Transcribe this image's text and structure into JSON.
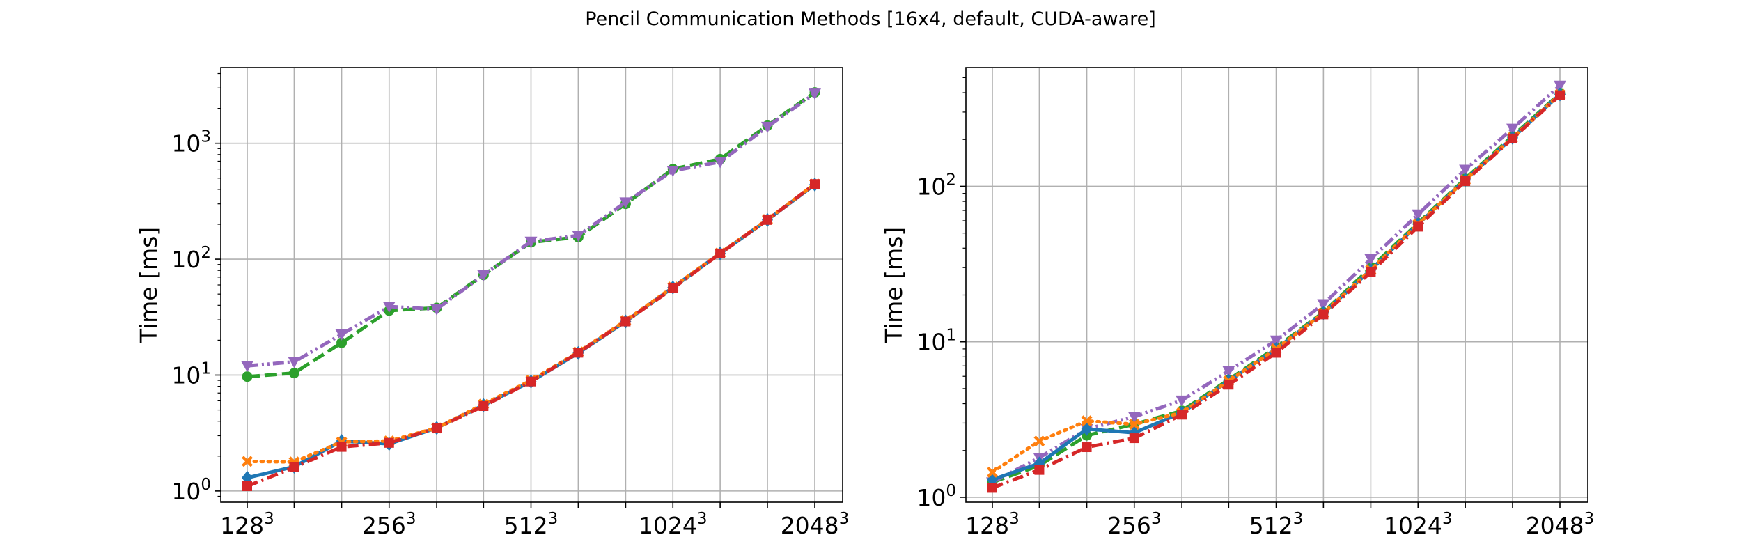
{
  "figure": {
    "title": "Pencil Communication Methods [16x4, default, CUDA-aware]"
  },
  "chart_data": [
    {
      "type": "line",
      "title": "",
      "xlabel": "",
      "ylabel": "Time [ms]",
      "yscale": "log",
      "xscale": "log2",
      "grid": true,
      "x": [
        128,
        161,
        203,
        256,
        323,
        406,
        512,
        645,
        813,
        1024,
        1290,
        1625,
        2048
      ],
      "xticks": [
        {
          "value": 128,
          "base": "128",
          "exp": "3"
        },
        {
          "value": 256,
          "base": "256",
          "exp": "3"
        },
        {
          "value": 512,
          "base": "512",
          "exp": "3"
        },
        {
          "value": 1024,
          "base": "1024",
          "exp": "3"
        },
        {
          "value": 2048,
          "base": "2048",
          "exp": "3"
        }
      ],
      "yticks": [
        {
          "value": 1,
          "base": "10",
          "exp": "0"
        },
        {
          "value": 10,
          "base": "10",
          "exp": "1"
        },
        {
          "value": 100,
          "base": "10",
          "exp": "2"
        },
        {
          "value": 1000,
          "base": "10",
          "exp": "3"
        }
      ],
      "ylim": [
        0.8,
        4500
      ],
      "series": [
        {
          "color": "#2ca02c",
          "dash": "dashed",
          "marker": "circle",
          "values": [
            9.7,
            10.4,
            19,
            36,
            38,
            73,
            140,
            155,
            300,
            600,
            730,
            1420,
            2750
          ]
        },
        {
          "color": "#9467bd",
          "dash": "dashdotdot",
          "marker": "triangle-down",
          "values": [
            12,
            13,
            22.5,
            39,
            37,
            73,
            142,
            160,
            310,
            580,
            690,
            1390,
            2690
          ]
        },
        {
          "color": "#1f77b4",
          "dash": "solid",
          "marker": "diamond",
          "values": [
            1.3,
            1.62,
            2.7,
            2.55,
            3.5,
            5.5,
            8.8,
            15.5,
            29,
            57,
            112,
            218,
            440
          ]
        },
        {
          "color": "#ff7f0e",
          "dash": "dotted",
          "marker": "x",
          "values": [
            1.8,
            1.78,
            2.65,
            2.7,
            3.5,
            5.6,
            9.0,
            15.8,
            29.5,
            57.5,
            113,
            220,
            445
          ]
        },
        {
          "color": "#d62728",
          "dash": "dashdot",
          "marker": "square",
          "values": [
            1.1,
            1.6,
            2.4,
            2.6,
            3.5,
            5.4,
            8.8,
            15.6,
            29,
            56,
            112,
            218,
            445
          ]
        }
      ]
    },
    {
      "type": "line",
      "title": "",
      "xlabel": "",
      "ylabel": "Time [ms]",
      "yscale": "log",
      "xscale": "log2",
      "grid": true,
      "x": [
        128,
        161,
        203,
        256,
        323,
        406,
        512,
        645,
        813,
        1024,
        1290,
        1625,
        2048
      ],
      "xticks": [
        {
          "value": 128,
          "base": "128",
          "exp": "3"
        },
        {
          "value": 256,
          "base": "256",
          "exp": "3"
        },
        {
          "value": 512,
          "base": "512",
          "exp": "3"
        },
        {
          "value": 1024,
          "base": "1024",
          "exp": "3"
        },
        {
          "value": 2048,
          "base": "2048",
          "exp": "3"
        }
      ],
      "yticks": [
        {
          "value": 1,
          "base": "10",
          "exp": "0"
        },
        {
          "value": 10,
          "base": "10",
          "exp": "1"
        },
        {
          "value": 100,
          "base": "10",
          "exp": "2"
        }
      ],
      "ylim": [
        0.93,
        580
      ],
      "series": [
        {
          "color": "#2ca02c",
          "dash": "dashed",
          "marker": "circle",
          "values": [
            1.25,
            1.6,
            2.5,
            2.95,
            3.6,
            5.7,
            9.2,
            15.5,
            30,
            58,
            112,
            210,
            395
          ]
        },
        {
          "color": "#9467bd",
          "dash": "dashdotdot",
          "marker": "triangle-down",
          "values": [
            1.25,
            1.8,
            2.75,
            3.3,
            4.2,
            6.5,
            10.2,
            17.5,
            34,
            66,
            128,
            235,
            445
          ]
        },
        {
          "color": "#1f77b4",
          "dash": "solid",
          "marker": "diamond",
          "values": [
            1.3,
            1.65,
            2.75,
            2.6,
            3.5,
            5.6,
            9.0,
            15.3,
            29,
            57,
            110,
            205,
            390
          ]
        },
        {
          "color": "#ff7f0e",
          "dash": "dotted",
          "marker": "x",
          "values": [
            1.45,
            2.3,
            3.1,
            2.95,
            3.5,
            5.6,
            9.0,
            15.3,
            29,
            57,
            110,
            205,
            390
          ]
        },
        {
          "color": "#d62728",
          "dash": "dashdot",
          "marker": "square",
          "values": [
            1.15,
            1.5,
            2.1,
            2.4,
            3.4,
            5.3,
            8.5,
            15,
            28,
            55,
            108,
            203,
            385
          ]
        }
      ]
    }
  ]
}
